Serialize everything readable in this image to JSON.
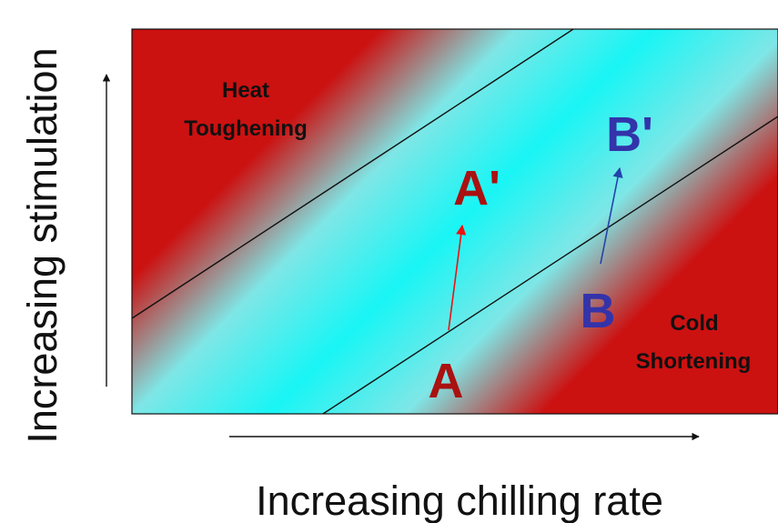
{
  "diagram": {
    "region_labels": {
      "heat_line1": "Heat",
      "heat_line2": "Toughening",
      "cold_line1": "Cold",
      "cold_line2": "Shortening"
    },
    "points": {
      "a": "A",
      "a_prime": "A'",
      "b": "B",
      "b_prime": "B'"
    },
    "axes": {
      "x_label": "Increasing chilling rate",
      "y_label": "Increasing stimulation"
    },
    "colors": {
      "band": "#66eeee",
      "band_center": "#00ffff",
      "corner": "#cc1111",
      "point_a": "#aa1111",
      "point_b": "#3333aa",
      "arrow_a": "#ee1111",
      "arrow_b": "#2244aa",
      "text_dark": "#111111"
    }
  }
}
